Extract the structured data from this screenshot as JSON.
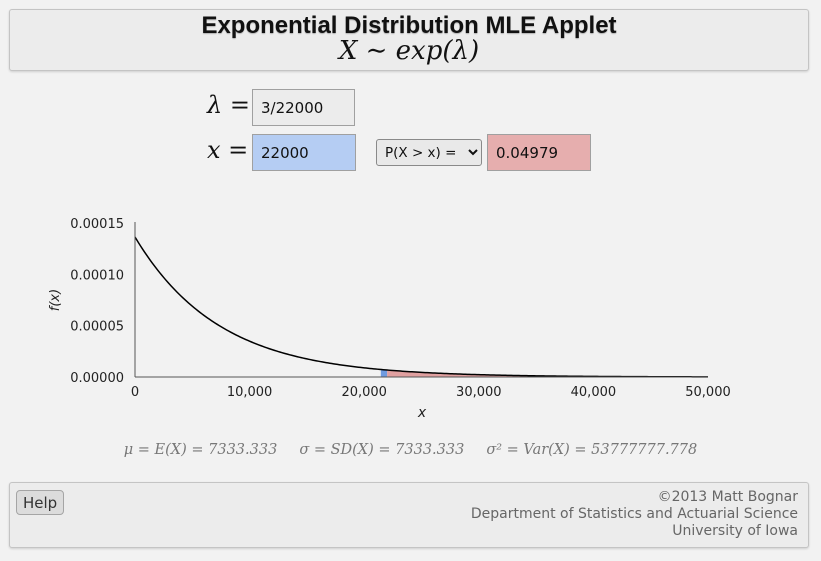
{
  "header": {
    "title": "Exponential Distribution MLE Applet",
    "subtitle": "X ∼ exp(λ)"
  },
  "inputs": {
    "lambda_symbol": "λ =",
    "lambda_value": "3/22000",
    "x_symbol": "x =",
    "x_value": "22000",
    "prob_options": [
      "P(X > x) ="
    ],
    "prob_selected": "P(X > x) =",
    "prob_result": "0.04979"
  },
  "stats": {
    "mean": "μ = E(X) = 7333.333",
    "sd": "σ = SD(X) = 7333.333",
    "var": "σ² = Var(X) = 53777777.778"
  },
  "footer": {
    "help_label": "Help",
    "credit_line1": "©2013 Matt Bognar",
    "credit_line2": "Department of Statistics and Actuarial Science",
    "credit_line3": "University of Iowa"
  },
  "colors": {
    "left_tail": "#6f9be0",
    "right_tail": "#e0a0a0",
    "curve": "#000000"
  },
  "chart_data": {
    "type": "area",
    "function": "exponential pdf",
    "lambda": 0.000136364,
    "x_marker": 22000,
    "shaded_region": "x > 22000",
    "xlabel": "x",
    "ylabel": "f(x)",
    "xlim": [
      0,
      50000
    ],
    "ylim": [
      0,
      0.00015
    ],
    "x_ticks": [
      "0",
      "10,000",
      "20,000",
      "30,000",
      "40,000",
      "50,000"
    ],
    "x_tick_values": [
      0,
      10000,
      20000,
      30000,
      40000,
      50000
    ],
    "y_ticks": [
      "0.00000",
      "0.00005",
      "0.00010",
      "0.00015"
    ],
    "y_tick_values": [
      0,
      5e-05,
      0.0001,
      0.00015
    ],
    "grid": false
  }
}
